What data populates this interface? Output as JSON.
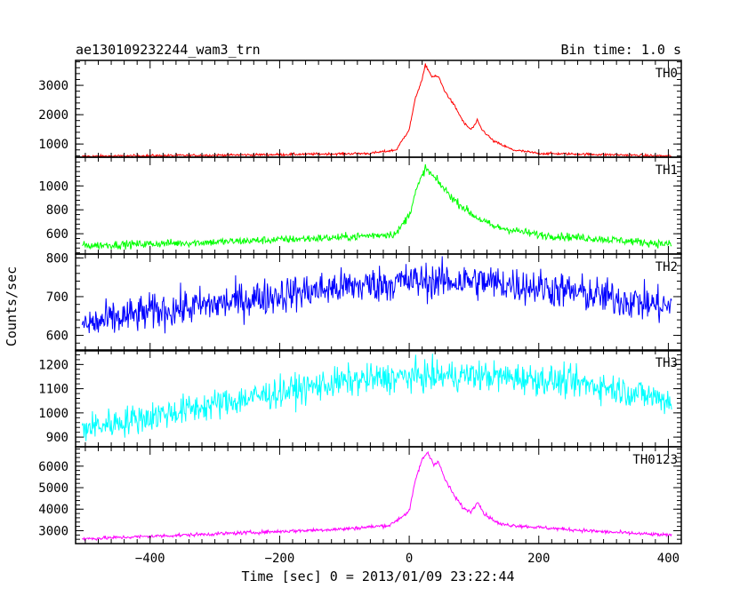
{
  "chart_data": {
    "type": "line",
    "title": "ae130109232244_wam3_trn",
    "subtitle": "Bin time: 1.0 s",
    "xlabel": "Time [sec] 0 = 2013/01/09 23:22:44",
    "ylabel": "Counts/sec",
    "xlim": [
      -515,
      420
    ],
    "xticks": [
      -400,
      -200,
      0,
      200,
      400
    ],
    "xtick_labels": [
      "−400",
      "−200",
      "0",
      "200",
      "400"
    ],
    "grid": false,
    "panels": [
      {
        "name": "TH0",
        "color": "#ff0000",
        "ylim": [
          550,
          3850
        ],
        "yticks": [
          1000,
          2000,
          3000
        ],
        "ytick_labels": [
          "1000",
          "2000",
          "3000"
        ],
        "baseline": [
          [
            -505,
            580
          ],
          [
            -200,
            640
          ],
          [
            -60,
            680
          ],
          [
            -20,
            800
          ],
          [
            0,
            1500
          ],
          [
            10,
            2600
          ],
          [
            20,
            3200
          ],
          [
            25,
            3700
          ],
          [
            35,
            3300
          ],
          [
            45,
            3300
          ],
          [
            55,
            2800
          ],
          [
            70,
            2300
          ],
          [
            85,
            1700
          ],
          [
            95,
            1500
          ],
          [
            100,
            1600
          ],
          [
            105,
            1800
          ],
          [
            112,
            1500
          ],
          [
            130,
            1100
          ],
          [
            160,
            800
          ],
          [
            200,
            680
          ],
          [
            300,
            640
          ],
          [
            405,
            590
          ]
        ],
        "noise": 30
      },
      {
        "name": "TH1",
        "color": "#00ff00",
        "ylim": [
          430,
          1240
        ],
        "yticks": [
          600,
          800,
          1000
        ],
        "ytick_labels": [
          "600",
          "800",
          "1000"
        ],
        "baseline": [
          [
            -505,
            500
          ],
          [
            -300,
            530
          ],
          [
            -100,
            570
          ],
          [
            -20,
            600
          ],
          [
            0,
            760
          ],
          [
            10,
            950
          ],
          [
            25,
            1150
          ],
          [
            45,
            1030
          ],
          [
            70,
            880
          ],
          [
            100,
            750
          ],
          [
            130,
            660
          ],
          [
            200,
            590
          ],
          [
            300,
            555
          ],
          [
            405,
            510
          ]
        ],
        "noise": 24
      },
      {
        "name": "TH2",
        "color": "#0000ff",
        "ylim": [
          560,
          810
        ],
        "yticks": [
          600,
          700,
          800
        ],
        "ytick_labels": [
          "600",
          "700",
          "800"
        ],
        "baseline": [
          [
            -505,
            625
          ],
          [
            -400,
            660
          ],
          [
            -300,
            680
          ],
          [
            -200,
            705
          ],
          [
            -100,
            725
          ],
          [
            0,
            740
          ],
          [
            100,
            740
          ],
          [
            200,
            725
          ],
          [
            300,
            700
          ],
          [
            405,
            672
          ]
        ],
        "noise": 34
      },
      {
        "name": "TH3",
        "color": "#00ffff",
        "ylim": [
          860,
          1260
        ],
        "yticks": [
          900,
          1000,
          1100,
          1200
        ],
        "ytick_labels": [
          "900",
          "1000",
          "1100",
          "1200"
        ],
        "baseline": [
          [
            -505,
            935
          ],
          [
            -400,
            985
          ],
          [
            -300,
            1035
          ],
          [
            -200,
            1085
          ],
          [
            -100,
            1130
          ],
          [
            0,
            1150
          ],
          [
            100,
            1155
          ],
          [
            200,
            1140
          ],
          [
            300,
            1110
          ],
          [
            405,
            1050
          ]
        ],
        "noise": 45
      },
      {
        "name": "TH0123",
        "color": "#ff00ff",
        "ylim": [
          2400,
          6900
        ],
        "yticks": [
          3000,
          4000,
          5000,
          6000
        ],
        "ytick_labels": [
          "3000",
          "4000",
          "5000",
          "6000"
        ],
        "baseline": [
          [
            -505,
            2620
          ],
          [
            -300,
            2850
          ],
          [
            -100,
            3080
          ],
          [
            -30,
            3250
          ],
          [
            0,
            3900
          ],
          [
            10,
            5400
          ],
          [
            20,
            6300
          ],
          [
            28,
            6650
          ],
          [
            38,
            6100
          ],
          [
            45,
            6200
          ],
          [
            55,
            5400
          ],
          [
            70,
            4600
          ],
          [
            85,
            4000
          ],
          [
            95,
            3900
          ],
          [
            100,
            4050
          ],
          [
            106,
            4400
          ],
          [
            115,
            3800
          ],
          [
            140,
            3300
          ],
          [
            200,
            3150
          ],
          [
            300,
            2950
          ],
          [
            405,
            2780
          ]
        ],
        "noise": 60
      }
    ]
  }
}
